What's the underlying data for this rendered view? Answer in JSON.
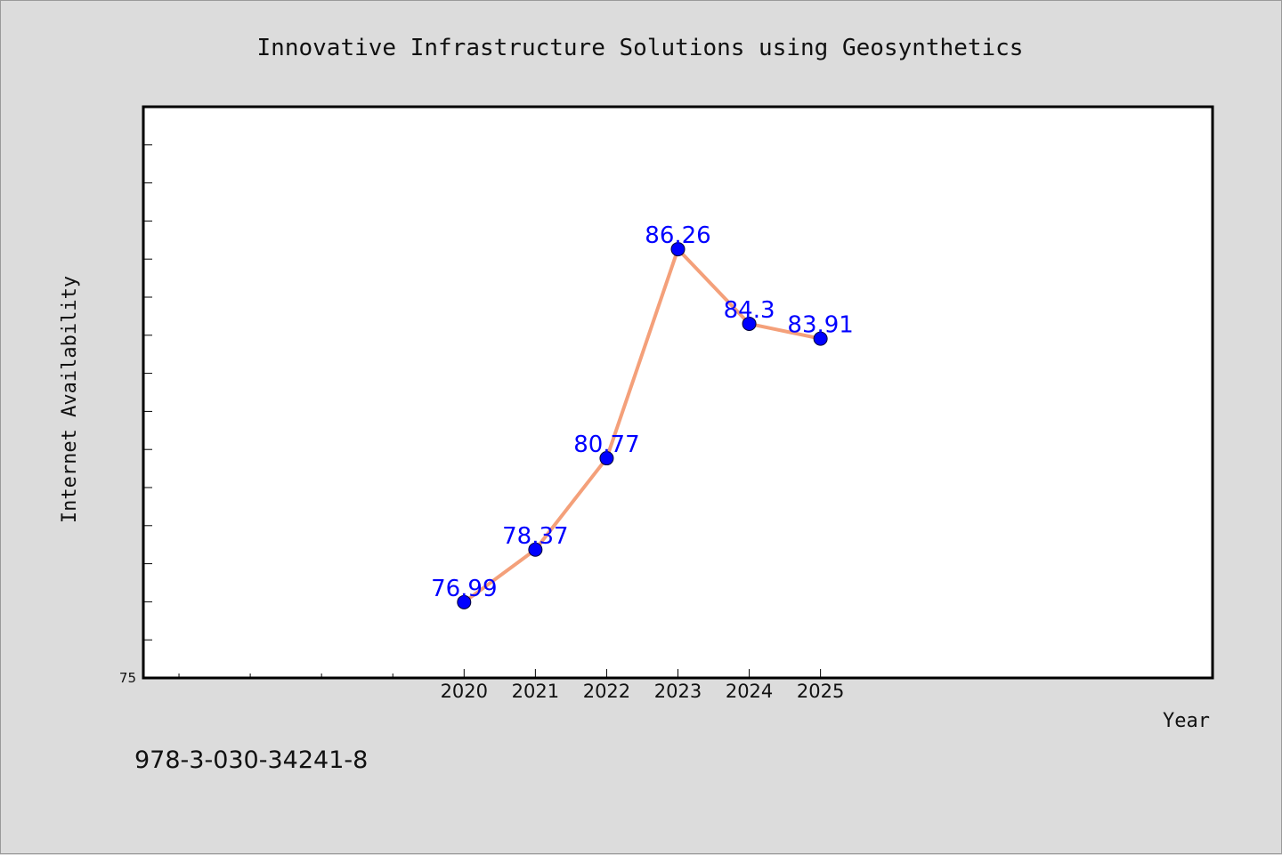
{
  "page": {
    "footer_text": "978-3-030-34241-8"
  },
  "chart_data": {
    "type": "line",
    "title": "Innovative Infrastructure Solutions using Geosynthetics",
    "xlabel": "Year",
    "ylabel": "Internet Availability",
    "x": [
      2020,
      2021,
      2022,
      2023,
      2024,
      2025
    ],
    "x_tick_labels": [
      "2020",
      "2021",
      "2022",
      "2023",
      "2024",
      "2025"
    ],
    "series": [
      {
        "values": [
          76.99,
          78.37,
          80.77,
          86.26,
          84.3,
          83.91
        ],
        "labels": [
          "76.99",
          "78.37",
          "80.77",
          "86.26",
          "84.3",
          "83.91"
        ],
        "line_color": "#f4a07a",
        "marker_color": "#0000ff"
      }
    ],
    "y_tick_labels": [
      "75"
    ],
    "xlim": [
      2015.5,
      2030.5
    ],
    "ylim": [
      75,
      90
    ],
    "y_minor_step": 1,
    "x_minor_ticks": [
      2016,
      2017,
      2018,
      2019
    ],
    "grid": false,
    "legend": "none"
  }
}
